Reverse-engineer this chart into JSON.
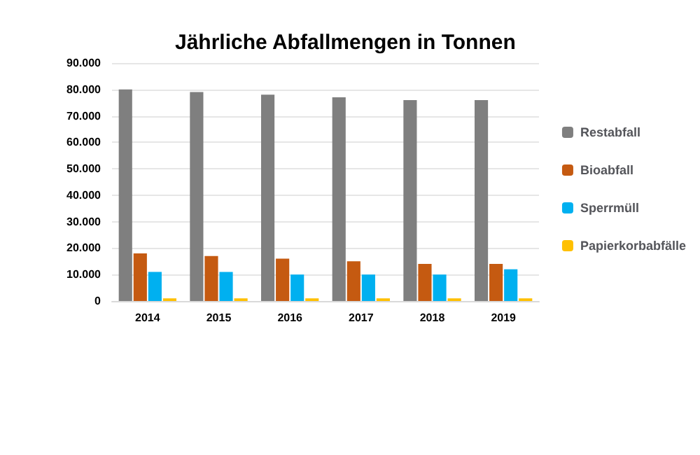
{
  "chart_data": {
    "type": "bar",
    "title": "Jährliche Abfallmengen in Tonnen",
    "categories": [
      "2014",
      "2015",
      "2016",
      "2017",
      "2018",
      "2019"
    ],
    "series": [
      {
        "name": "Restabfall",
        "color": "#7f7f7f",
        "values": [
          80000,
          79000,
          78000,
          77000,
          76000,
          76000
        ]
      },
      {
        "name": "Bioabfall",
        "color": "#c55a11",
        "values": [
          18000,
          17000,
          16000,
          15000,
          14000,
          14000
        ]
      },
      {
        "name": "Sperrmüll",
        "color": "#00b0f0",
        "values": [
          11000,
          11000,
          10000,
          10000,
          10000,
          12000
        ]
      },
      {
        "name": "Papierkorbabfälle",
        "color": "#ffc000",
        "values": [
          1000,
          1000,
          1000,
          1000,
          1000,
          1000
        ]
      }
    ],
    "ylim": [
      0,
      90000
    ],
    "yticks": [
      {
        "value": 0,
        "label": "0"
      },
      {
        "value": 10000,
        "label": "10.000"
      },
      {
        "value": 20000,
        "label": "20.000"
      },
      {
        "value": 30000,
        "label": "30.000"
      },
      {
        "value": 40000,
        "label": "40.000"
      },
      {
        "value": 50000,
        "label": "50.000"
      },
      {
        "value": 60000,
        "label": "60.000"
      },
      {
        "value": 70000,
        "label": "70.000"
      },
      {
        "value": 80000,
        "label": "80.000"
      },
      {
        "value": 90000,
        "label": "90.000"
      }
    ],
    "grid": "y",
    "legend": "right"
  }
}
